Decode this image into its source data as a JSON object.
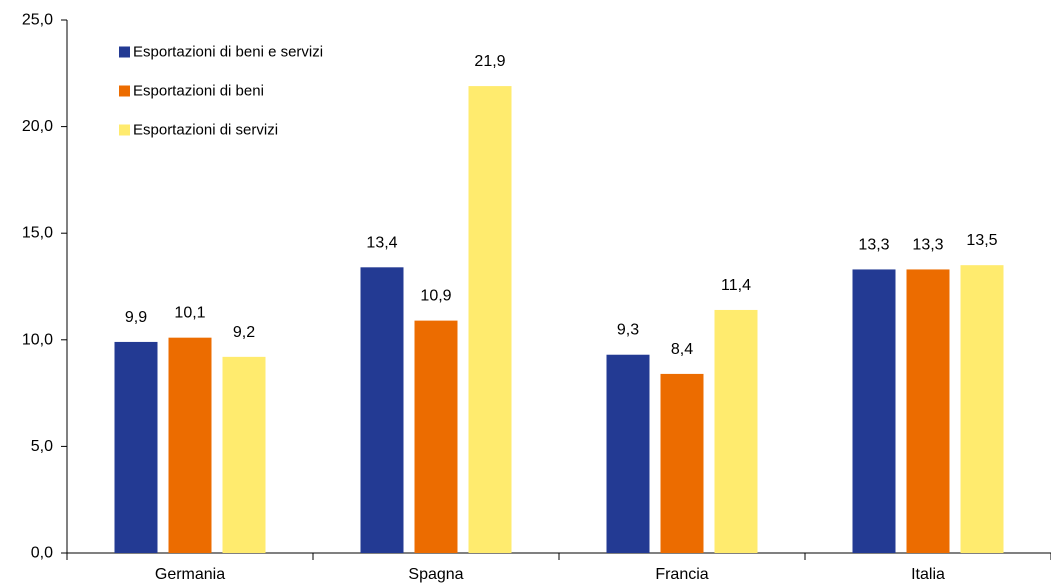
{
  "chart_data": {
    "type": "bar",
    "title": "",
    "xlabel": "",
    "ylabel": "",
    "categories": [
      "Germania",
      "Spagna",
      "Francia",
      "Italia"
    ],
    "series": [
      {
        "name": "Esportazioni di beni e servizi",
        "color": "#233A93",
        "values": [
          9.9,
          13.4,
          9.3,
          13.3
        ]
      },
      {
        "name": "Esportazioni di beni",
        "color": "#EC6C00",
        "values": [
          10.1,
          10.9,
          8.4,
          13.3
        ]
      },
      {
        "name": "Esportazioni di servizi",
        "color": "#FFEB6E",
        "values": [
          9.2,
          21.9,
          11.4,
          13.5
        ]
      }
    ],
    "ylim": [
      0,
      25
    ],
    "yticks": [
      0,
      5,
      10,
      15,
      20,
      25
    ],
    "ytick_labels": [
      "0,0",
      "5,0",
      "10,0",
      "15,0",
      "20,0",
      "25,0"
    ],
    "data_labels": [
      [
        "9,9",
        "13,4",
        "9,3",
        "13,3"
      ],
      [
        "10,1",
        "10,9",
        "8,4",
        "13,3"
      ],
      [
        "9,2",
        "21,9",
        "11,4",
        "13,5"
      ]
    ],
    "legend_position": "top-left",
    "grid": false
  }
}
